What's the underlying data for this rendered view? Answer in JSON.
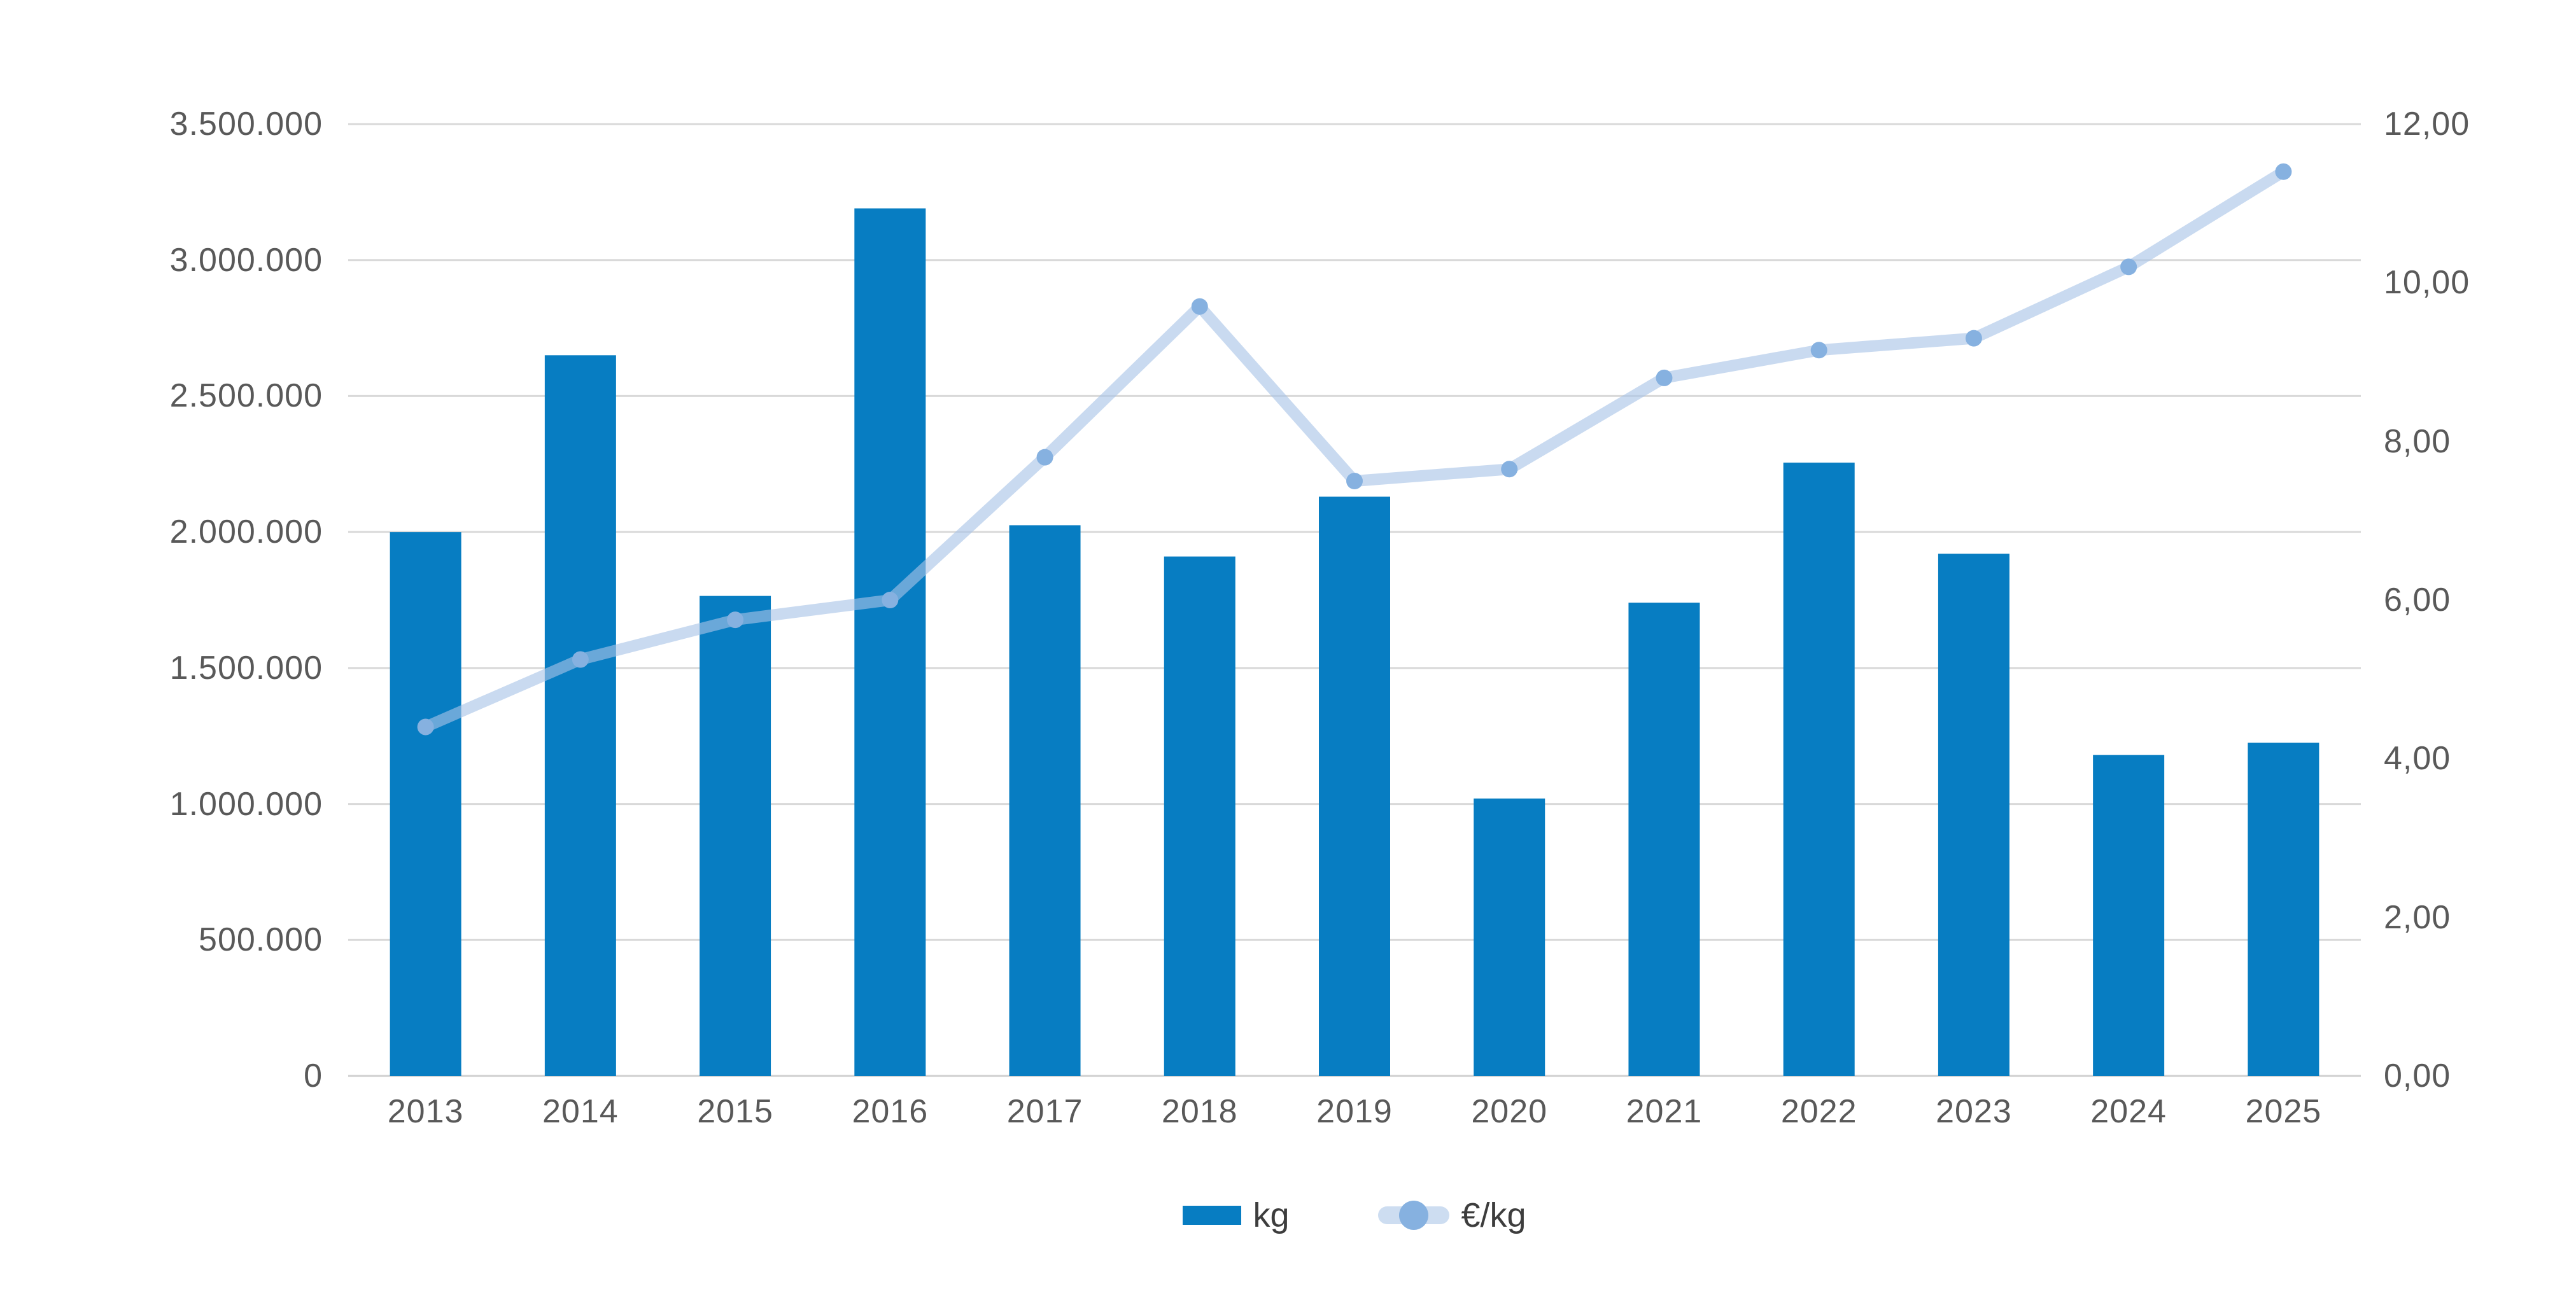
{
  "colors": {
    "background": "#ffffff",
    "bar": "#077dc2",
    "line": "#a8c4e6",
    "line_opacity": 0.62,
    "line_over_white": "#cdddf1",
    "marker": "#86b1e0",
    "grid": "#d9d9d9",
    "baseline": "#cfcfcf",
    "axis_text": "#595959",
    "legend_text": "#3d3d3d"
  },
  "chart_data": {
    "type": "bar",
    "subtype": "combo-bar-line-dual-axis",
    "title": "",
    "xlabel": "",
    "ylabel_left": "",
    "ylabel_right": "",
    "grid": true,
    "legend_position": "bottom-center",
    "categories": [
      "2013",
      "2014",
      "2015",
      "2016",
      "2017",
      "2018",
      "2019",
      "2020",
      "2021",
      "2022",
      "2023",
      "2024",
      "2025"
    ],
    "series": [
      {
        "name": "kg",
        "type": "bar",
        "axis": "left",
        "color": "#077dc2",
        "values": [
          2000000,
          2650000,
          1765000,
          3190000,
          2025000,
          1910000,
          2130000,
          1020000,
          1740000,
          2255000,
          1920000,
          1180000,
          1225000
        ]
      },
      {
        "name": "€/kg",
        "type": "line",
        "axis": "right",
        "color": "#a8c4e6",
        "marker_color": "#86b1e0",
        "values": [
          4.4,
          5.25,
          5.75,
          6.0,
          7.8,
          9.7,
          7.5,
          7.65,
          8.8,
          9.15,
          9.3,
          10.2,
          11.4
        ]
      }
    ],
    "left_axis": {
      "min": 0,
      "max": 3500000,
      "step": 500000,
      "tick_labels": [
        "3.500.000",
        "3.000.000",
        "2.500.000",
        "2.000.000",
        "1.500.000",
        "1.000.000",
        "500.000",
        "0"
      ]
    },
    "right_axis": {
      "min": 0,
      "max": 12,
      "step": 2,
      "tick_labels": [
        "12,00",
        "10,00",
        "8,00",
        "6,00",
        "4,00",
        "2,00",
        "0,00"
      ]
    }
  }
}
